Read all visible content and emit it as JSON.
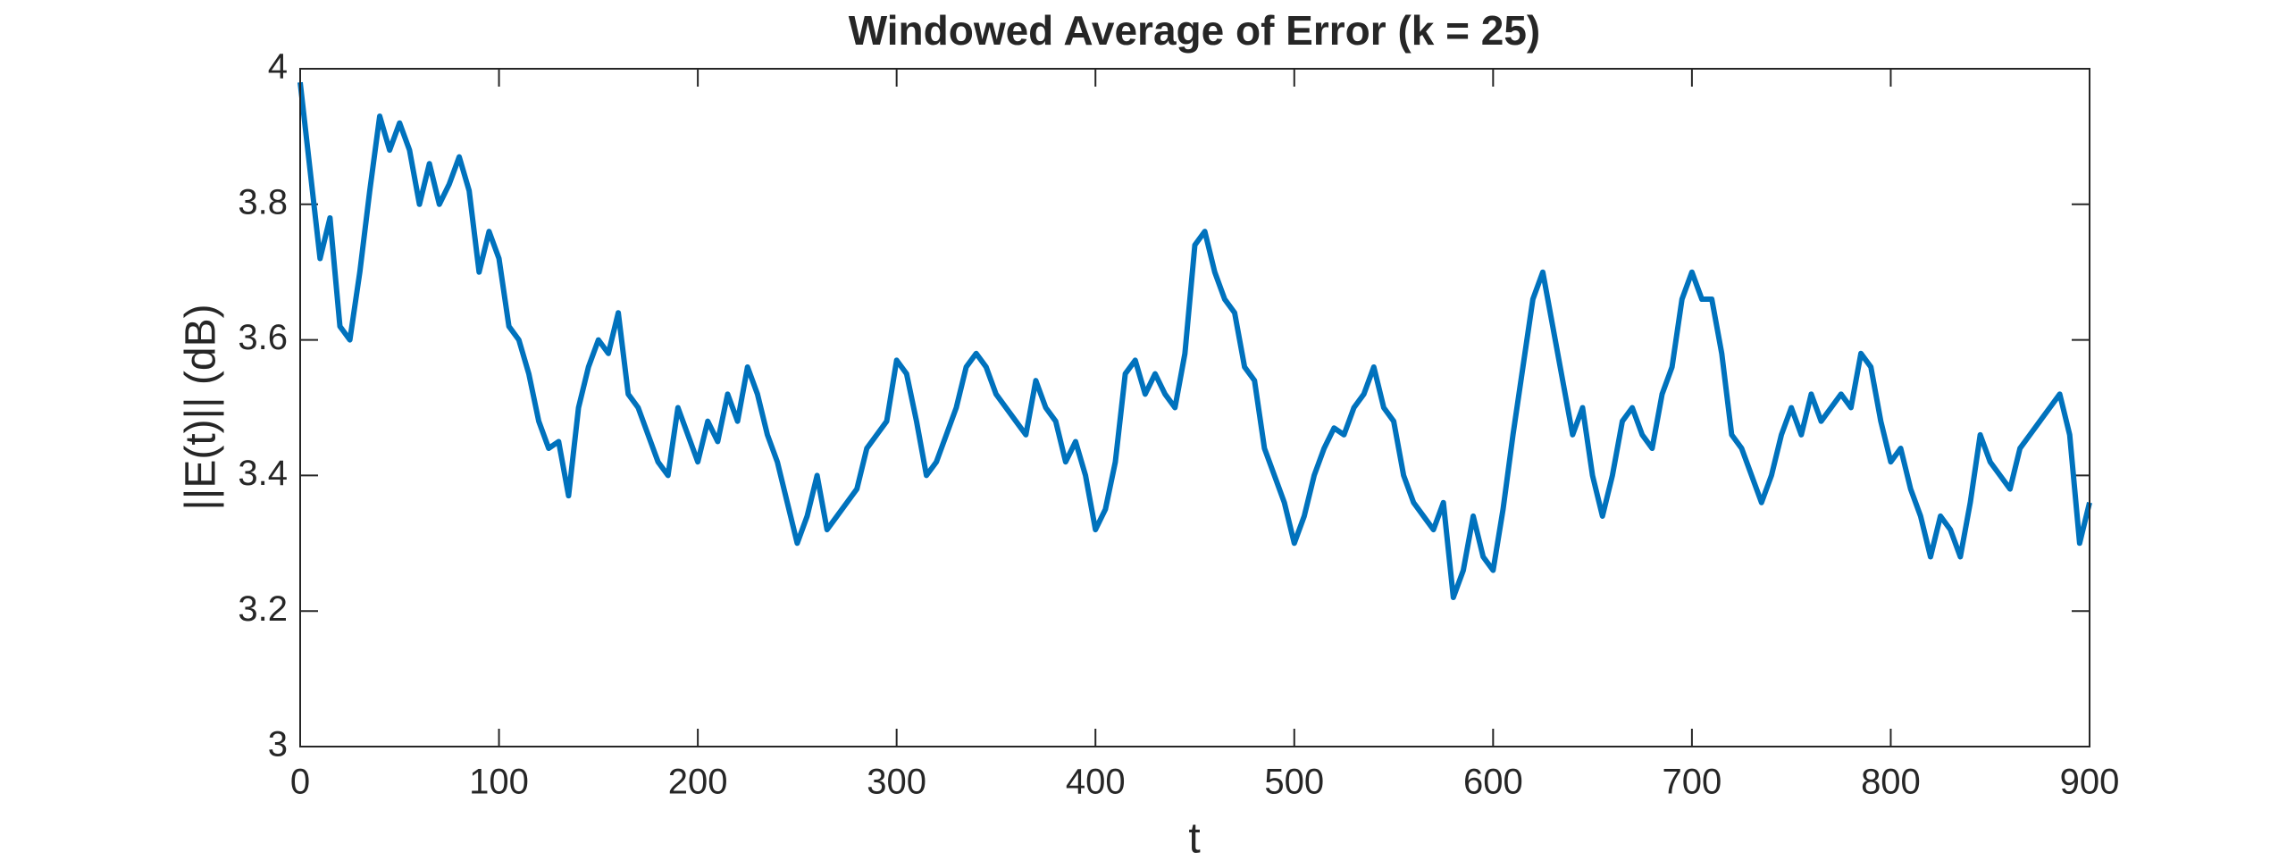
{
  "chart_data": {
    "type": "line",
    "title": "Windowed Average of Error (k = 25)",
    "xlabel": "t",
    "ylabel": "||E(t)|| (dB)",
    "color": "#0072bd",
    "xlim": [
      0,
      900
    ],
    "ylim": [
      3,
      4
    ],
    "xticks": [
      0,
      100,
      200,
      300,
      400,
      500,
      600,
      700,
      800,
      900
    ],
    "yticks": [
      3,
      {
        "value": 3.2,
        "label": "3.2"
      },
      {
        "value": 3.4,
        "label": "3.4"
      },
      {
        "value": 3.6,
        "label": "3.6"
      },
      {
        "value": 3.8,
        "label": "3.8"
      },
      4
    ],
    "grid": false,
    "x": [
      0,
      5,
      10,
      15,
      20,
      25,
      30,
      35,
      40,
      45,
      50,
      55,
      60,
      65,
      70,
      75,
      80,
      85,
      90,
      95,
      100,
      105,
      110,
      115,
      120,
      125,
      130,
      135,
      140,
      145,
      150,
      155,
      160,
      165,
      170,
      175,
      180,
      185,
      190,
      195,
      200,
      205,
      210,
      215,
      220,
      225,
      230,
      235,
      240,
      245,
      250,
      255,
      260,
      265,
      270,
      275,
      280,
      285,
      290,
      295,
      300,
      305,
      310,
      315,
      320,
      325,
      330,
      335,
      340,
      345,
      350,
      355,
      360,
      365,
      370,
      375,
      380,
      385,
      390,
      395,
      400,
      405,
      410,
      415,
      420,
      425,
      430,
      435,
      440,
      445,
      450,
      455,
      460,
      465,
      470,
      475,
      480,
      485,
      490,
      495,
      500,
      505,
      510,
      515,
      520,
      525,
      530,
      535,
      540,
      545,
      550,
      555,
      560,
      565,
      570,
      575,
      580,
      585,
      590,
      595,
      600,
      605,
      610,
      615,
      620,
      625,
      630,
      635,
      640,
      645,
      650,
      655,
      660,
      665,
      670,
      675,
      680,
      685,
      690,
      695,
      700,
      705,
      710,
      715,
      720,
      725,
      730,
      735,
      740,
      745,
      750,
      755,
      760,
      765,
      770,
      775,
      780,
      785,
      790,
      795,
      800,
      805,
      810,
      815,
      820,
      825,
      830,
      835,
      840,
      845,
      850,
      855,
      860,
      865,
      870,
      875,
      880,
      885,
      890,
      895,
      900
    ],
    "values": [
      3.98,
      3.85,
      3.72,
      3.78,
      3.62,
      3.6,
      3.7,
      3.82,
      3.93,
      3.88,
      3.92,
      3.88,
      3.8,
      3.86,
      3.8,
      3.83,
      3.87,
      3.82,
      3.7,
      3.76,
      3.72,
      3.62,
      3.6,
      3.55,
      3.48,
      3.44,
      3.45,
      3.37,
      3.5,
      3.56,
      3.6,
      3.58,
      3.64,
      3.52,
      3.5,
      3.46,
      3.42,
      3.4,
      3.5,
      3.46,
      3.42,
      3.48,
      3.45,
      3.52,
      3.48,
      3.56,
      3.52,
      3.46,
      3.42,
      3.36,
      3.3,
      3.34,
      3.4,
      3.32,
      3.34,
      3.36,
      3.38,
      3.44,
      3.46,
      3.48,
      3.57,
      3.55,
      3.48,
      3.4,
      3.42,
      3.46,
      3.5,
      3.56,
      3.58,
      3.56,
      3.52,
      3.5,
      3.48,
      3.46,
      3.54,
      3.5,
      3.48,
      3.42,
      3.45,
      3.4,
      3.32,
      3.35,
      3.42,
      3.55,
      3.57,
      3.52,
      3.55,
      3.52,
      3.5,
      3.58,
      3.74,
      3.76,
      3.7,
      3.66,
      3.64,
      3.56,
      3.54,
      3.44,
      3.4,
      3.36,
      3.3,
      3.34,
      3.4,
      3.44,
      3.47,
      3.46,
      3.5,
      3.52,
      3.56,
      3.5,
      3.48,
      3.4,
      3.36,
      3.34,
      3.32,
      3.36,
      3.22,
      3.26,
      3.34,
      3.28,
      3.26,
      3.35,
      3.46,
      3.56,
      3.66,
      3.7,
      3.62,
      3.54,
      3.46,
      3.5,
      3.4,
      3.34,
      3.4,
      3.48,
      3.5,
      3.46,
      3.44,
      3.52,
      3.56,
      3.66,
      3.7,
      3.66,
      3.66,
      3.58,
      3.46,
      3.44,
      3.4,
      3.36,
      3.4,
      3.46,
      3.5,
      3.46,
      3.52,
      3.48,
      3.5,
      3.52,
      3.5,
      3.58,
      3.56,
      3.48,
      3.42,
      3.44,
      3.38,
      3.34,
      3.28,
      3.34,
      3.32,
      3.28,
      3.36,
      3.46,
      3.42,
      3.4,
      3.38,
      3.44,
      3.46,
      3.48,
      3.5,
      3.52,
      3.46,
      3.3,
      3.36
    ]
  }
}
